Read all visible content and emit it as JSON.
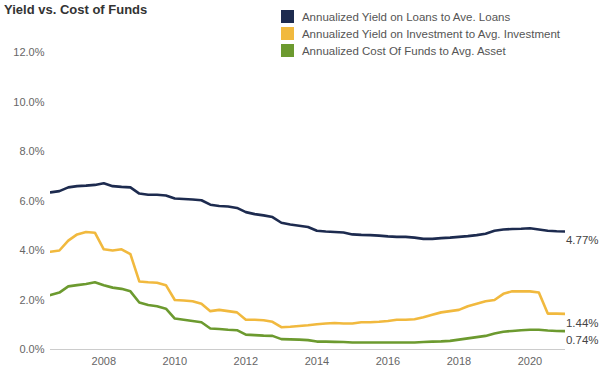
{
  "chart_data": {
    "type": "line",
    "title": "Yield vs. Cost of Funds",
    "x": [
      2006.5,
      2006.75,
      2007,
      2007.25,
      2007.5,
      2007.75,
      2008,
      2008.25,
      2008.5,
      2008.75,
      2009,
      2009.25,
      2009.5,
      2009.75,
      2010,
      2010.25,
      2010.5,
      2010.75,
      2011,
      2011.25,
      2011.5,
      2011.75,
      2012,
      2012.25,
      2012.5,
      2012.75,
      2013,
      2013.25,
      2013.5,
      2013.75,
      2014,
      2014.25,
      2014.5,
      2014.75,
      2015,
      2015.25,
      2015.5,
      2015.75,
      2016,
      2016.25,
      2016.5,
      2016.75,
      2017,
      2017.25,
      2017.5,
      2017.75,
      2018,
      2018.25,
      2018.5,
      2018.75,
      2019,
      2019.25,
      2019.5,
      2019.75,
      2020,
      2020.25,
      2020.5,
      2020.75,
      2021
    ],
    "series": [
      {
        "name": "Annualized Yield on Loans to Ave. Loans",
        "color": "#1d2b4f",
        "values": [
          6.35,
          6.4,
          6.55,
          6.6,
          6.62,
          6.65,
          6.72,
          6.6,
          6.57,
          6.55,
          6.3,
          6.25,
          6.25,
          6.22,
          6.1,
          6.08,
          6.06,
          6.03,
          5.85,
          5.8,
          5.78,
          5.72,
          5.55,
          5.47,
          5.42,
          5.35,
          5.12,
          5.05,
          5.0,
          4.95,
          4.8,
          4.77,
          4.75,
          4.73,
          4.65,
          4.63,
          4.62,
          4.6,
          4.57,
          4.55,
          4.55,
          4.52,
          4.47,
          4.47,
          4.5,
          4.52,
          4.55,
          4.58,
          4.62,
          4.68,
          4.8,
          4.85,
          4.87,
          4.88,
          4.9,
          4.85,
          4.8,
          4.78,
          4.77
        ]
      },
      {
        "name": "Annualized Yield on Investment to Avg. Investment",
        "color": "#f1b93e",
        "values": [
          3.95,
          4.0,
          4.4,
          4.65,
          4.75,
          4.72,
          4.05,
          4.0,
          4.05,
          3.85,
          2.75,
          2.72,
          2.7,
          2.6,
          2.0,
          1.98,
          1.95,
          1.85,
          1.55,
          1.6,
          1.55,
          1.5,
          1.2,
          1.2,
          1.18,
          1.12,
          0.9,
          0.92,
          0.95,
          0.98,
          1.02,
          1.05,
          1.07,
          1.05,
          1.05,
          1.1,
          1.1,
          1.12,
          1.15,
          1.2,
          1.2,
          1.22,
          1.3,
          1.4,
          1.5,
          1.55,
          1.6,
          1.75,
          1.85,
          1.95,
          2.0,
          2.25,
          2.35,
          2.35,
          2.35,
          2.3,
          1.45,
          1.45,
          1.44
        ]
      },
      {
        "name": "Annualized Cost Of Funds to Avg. Asset",
        "color": "#6c9a2f",
        "values": [
          2.2,
          2.3,
          2.55,
          2.6,
          2.65,
          2.72,
          2.6,
          2.5,
          2.45,
          2.35,
          1.9,
          1.8,
          1.75,
          1.65,
          1.25,
          1.2,
          1.15,
          1.1,
          0.85,
          0.83,
          0.8,
          0.78,
          0.6,
          0.58,
          0.56,
          0.55,
          0.42,
          0.41,
          0.4,
          0.38,
          0.32,
          0.32,
          0.31,
          0.3,
          0.28,
          0.28,
          0.28,
          0.28,
          0.28,
          0.28,
          0.28,
          0.28,
          0.3,
          0.32,
          0.33,
          0.35,
          0.4,
          0.45,
          0.5,
          0.55,
          0.65,
          0.72,
          0.75,
          0.78,
          0.8,
          0.8,
          0.77,
          0.75,
          0.74
        ]
      }
    ],
    "annotations": [
      {
        "text": "4.77%",
        "series": "Annualized Yield on Loans to Ave. Loans"
      },
      {
        "text": "1.44%",
        "series": "Annualized Yield on Investment to Avg. Investment"
      },
      {
        "text": "0.74%",
        "series": "Annualized Cost Of Funds to Avg. Asset"
      }
    ],
    "xlim": [
      2006.5,
      2021
    ],
    "xticks": [
      2008,
      2010,
      2012,
      2014,
      2016,
      2018,
      2020
    ],
    "ylim": [
      0,
      12
    ],
    "yticks": [
      {
        "value": 0,
        "label": "0.0%"
      },
      {
        "value": 2,
        "label": "2.0%"
      },
      {
        "value": 4,
        "label": "4.0%"
      },
      {
        "value": 6,
        "label": "6.0%"
      },
      {
        "value": 8,
        "label": "8.0%"
      },
      {
        "value": 10,
        "label": "10.0%"
      },
      {
        "value": 12,
        "label": "12.0%"
      }
    ],
    "grid": false,
    "legend": "top-right"
  }
}
